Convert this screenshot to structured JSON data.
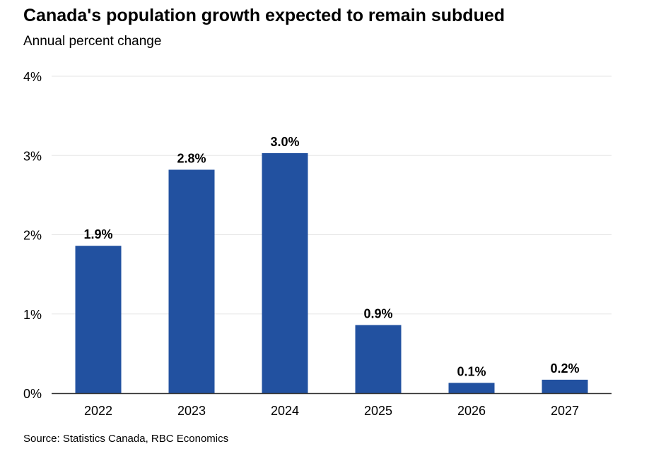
{
  "chart_data": {
    "type": "bar",
    "title": "Canada's population growth expected to remain subdued",
    "subtitle": "Annual percent change",
    "source": "Source: Statistics Canada, RBC Economics",
    "xlabel": "",
    "ylabel": "",
    "categories": [
      "2022",
      "2023",
      "2024",
      "2025",
      "2026",
      "2027"
    ],
    "values": [
      1.86,
      2.82,
      3.03,
      0.86,
      0.13,
      0.17
    ],
    "data_labels": [
      "1.9%",
      "2.8%",
      "3.0%",
      "0.9%",
      "0.1%",
      "0.2%"
    ],
    "ylim": [
      0,
      4
    ],
    "yticks": [
      0,
      1,
      2,
      3,
      4
    ],
    "ytick_labels": [
      "0%",
      "1%",
      "2%",
      "3%",
      "4%"
    ],
    "grid": true,
    "legend": "none",
    "colors": {
      "bar": "#2251a0",
      "grid": "#e6e6e6",
      "axis": "#333333"
    }
  }
}
